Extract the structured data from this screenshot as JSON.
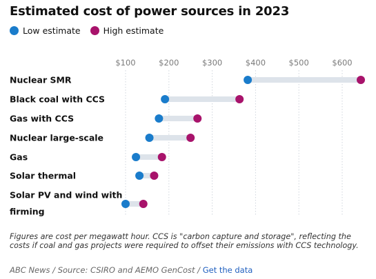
{
  "title": "Estimated cost of power sources in 2023",
  "legend": {
    "low_label": "Low estimate",
    "high_label": "High estimate"
  },
  "colors": {
    "low": "#1a7ccb",
    "high": "#a8136b",
    "range_bar": "#dde3ea",
    "grid": "#cfd5dc",
    "tick_text": "#7a7a7a"
  },
  "chart_data": {
    "type": "dumbbell",
    "title": "Estimated cost of power sources in 2023",
    "x_ticks": [
      "$100",
      "$200",
      "$300",
      "$400",
      "$500",
      "$600"
    ],
    "x_tick_values": [
      100,
      200,
      300,
      400,
      500,
      600
    ],
    "xlim": [
      100,
      650
    ],
    "grid": true,
    "legend_position": "top-left",
    "categories": [
      "Nuclear SMR",
      "Black coal with CCS",
      "Gas with CCS",
      "Nuclear large-scale",
      "Gas",
      "Solar thermal",
      "Solar PV and wind with firming"
    ],
    "series": [
      {
        "name": "Low estimate",
        "values": [
          382,
          191,
          177,
          155,
          124,
          132,
          100
        ]
      },
      {
        "name": "High estimate",
        "values": [
          643,
          363,
          266,
          250,
          184,
          166,
          141
        ]
      }
    ]
  },
  "footnote": "Figures are cost per megawatt hour. CCS is \"carbon capture and storage\", reflecting the costs if coal and gas projects were required to offset their emissions with CCS technology.",
  "source": {
    "text": "ABC News / Source: CSIRO and AEMO GenCost /",
    "link": "Get the data"
  }
}
